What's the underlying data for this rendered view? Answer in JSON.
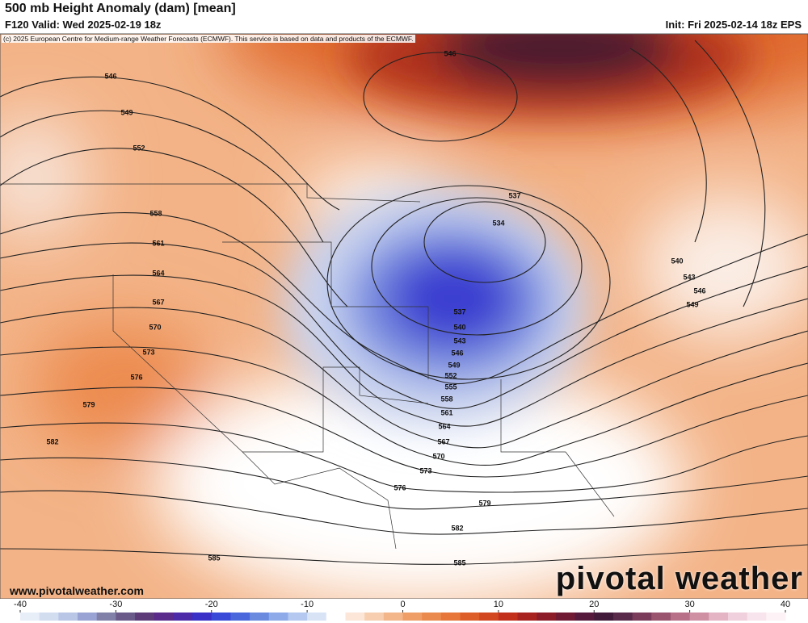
{
  "header": {
    "title": "500 mb Height Anomaly (dam) [mean]",
    "valid": "F120 Valid: Wed 2025-02-19 18z",
    "init": "Init: Fri 2025-02-14 18z EPS",
    "copyright": "(c) 2025 European Centre for Medium-range Weather Forecasts (ECMWF). This service is based on data and products of the ECMWF."
  },
  "contour_labels": [
    "546",
    "549",
    "552",
    "558",
    "561",
    "564",
    "567",
    "570",
    "573",
    "576",
    "579",
    "582",
    "585",
    "546",
    "537",
    "534",
    "540",
    "543",
    "546",
    "549",
    "537",
    "540",
    "543",
    "546",
    "549",
    "552",
    "555",
    "558",
    "561",
    "564",
    "567",
    "570",
    "573",
    "576",
    "579",
    "582",
    "585"
  ],
  "footer": {
    "website": "www.pivotalweather.com",
    "logo": "pivotal weather"
  },
  "colorbar": {
    "ticks": [
      -40,
      -30,
      -20,
      -10,
      0,
      10,
      20,
      30,
      40
    ],
    "colors": [
      "#e8eef8",
      "#d3ddf0",
      "#b9c6e6",
      "#9aa4d4",
      "#8080a8",
      "#6a5a8a",
      "#5c3b78",
      "#5a2b8a",
      "#4c2aa8",
      "#3a30c8",
      "#3a4ad8",
      "#4a68dc",
      "#6a8ae0",
      "#8eaae8",
      "#b4c8f0",
      "#d8e4f6",
      "#ffffff",
      "#fbe6d8",
      "#f7cfb0",
      "#f3b68a",
      "#ef9e68",
      "#eb8a4e",
      "#e6763a",
      "#de5e2a",
      "#d24620",
      "#c2301c",
      "#a82220",
      "#8c1c28",
      "#701a34",
      "#561a3c",
      "#421a3a",
      "#5a2a4a",
      "#7a3c5a",
      "#9a546e",
      "#b87088",
      "#d090a4",
      "#e4b4c4",
      "#f0d0dc",
      "#f8e4ec",
      "#fdf2f6"
    ]
  }
}
